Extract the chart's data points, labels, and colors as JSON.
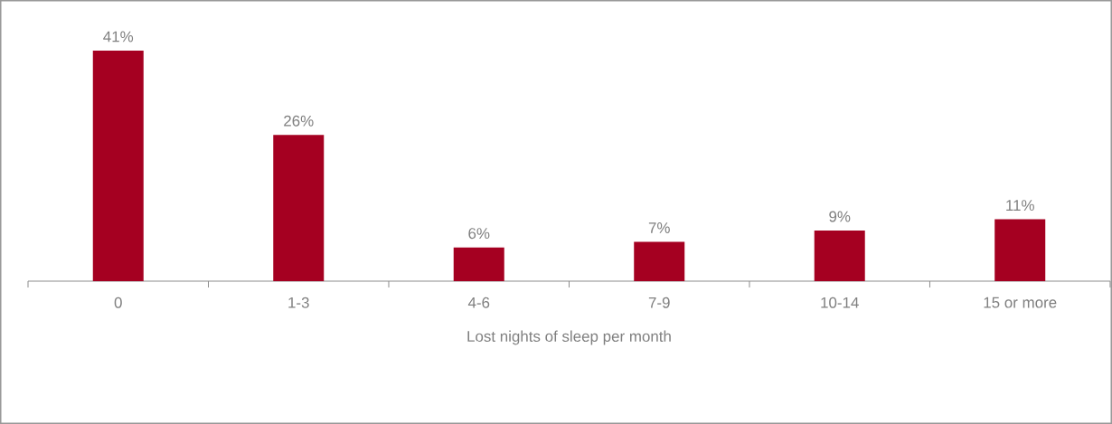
{
  "chart_data": {
    "type": "bar",
    "xlabel": "Lost nights of sleep per month",
    "categories": [
      "0",
      "1-3",
      "4-6",
      "7-9",
      "10-14",
      "15 or more"
    ],
    "values": [
      41,
      26,
      6,
      7,
      9,
      11
    ],
    "value_labels": [
      "41%",
      "26%",
      "6%",
      "7%",
      "9%",
      "11%"
    ],
    "color": "#a50021",
    "ylim": [
      0,
      50
    ],
    "tick_labels": "x"
  }
}
